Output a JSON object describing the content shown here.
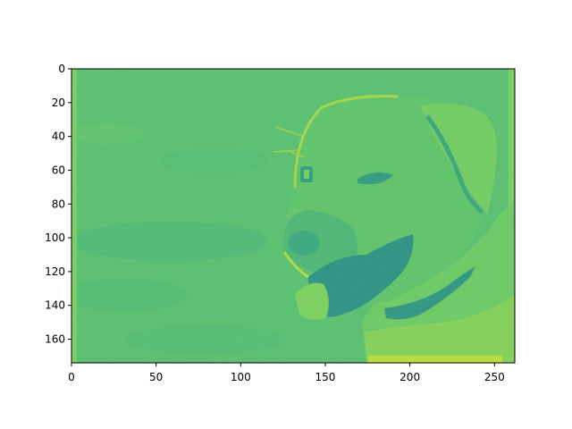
{
  "chart_data": {
    "type": "heatmap",
    "title": "",
    "xlabel": "",
    "ylabel": "",
    "xlim": [
      0,
      262
    ],
    "ylim": [
      174,
      0
    ],
    "x_ticks": [
      "0",
      "50",
      "100",
      "150",
      "200",
      "250"
    ],
    "y_ticks": [
      "0",
      "20",
      "40",
      "60",
      "80",
      "100",
      "120",
      "140",
      "160"
    ],
    "colormap": "viridis (upper range)",
    "image_content": "dog-portrait-filtered",
    "colors": {
      "background_field": "#5dc26b",
      "background_dark": "#48b276",
      "highlight": "#a2d84a",
      "shadow": "#2e9a7d",
      "deep_shadow": "#2a8c80"
    }
  }
}
